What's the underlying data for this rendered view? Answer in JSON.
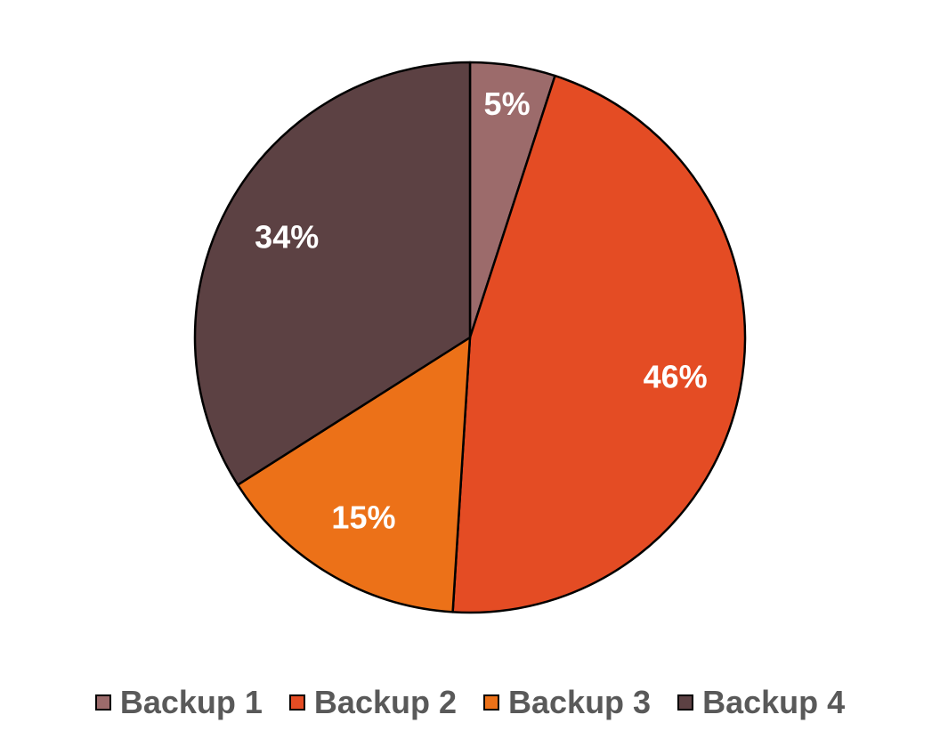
{
  "chart_data": {
    "type": "pie",
    "title": "",
    "categories": [
      "Backup 1",
      "Backup 2",
      "Backup 3",
      "Backup 4"
    ],
    "values": [
      5,
      46,
      15,
      34
    ],
    "data_labels": [
      "5%",
      "46%",
      "15%",
      "34%"
    ],
    "colors": [
      "#9c6b6b",
      "#e44c24",
      "#ec7118",
      "#5c4143"
    ],
    "start_angle_deg": 0,
    "direction": "clockwise",
    "legend_position": "bottom"
  }
}
